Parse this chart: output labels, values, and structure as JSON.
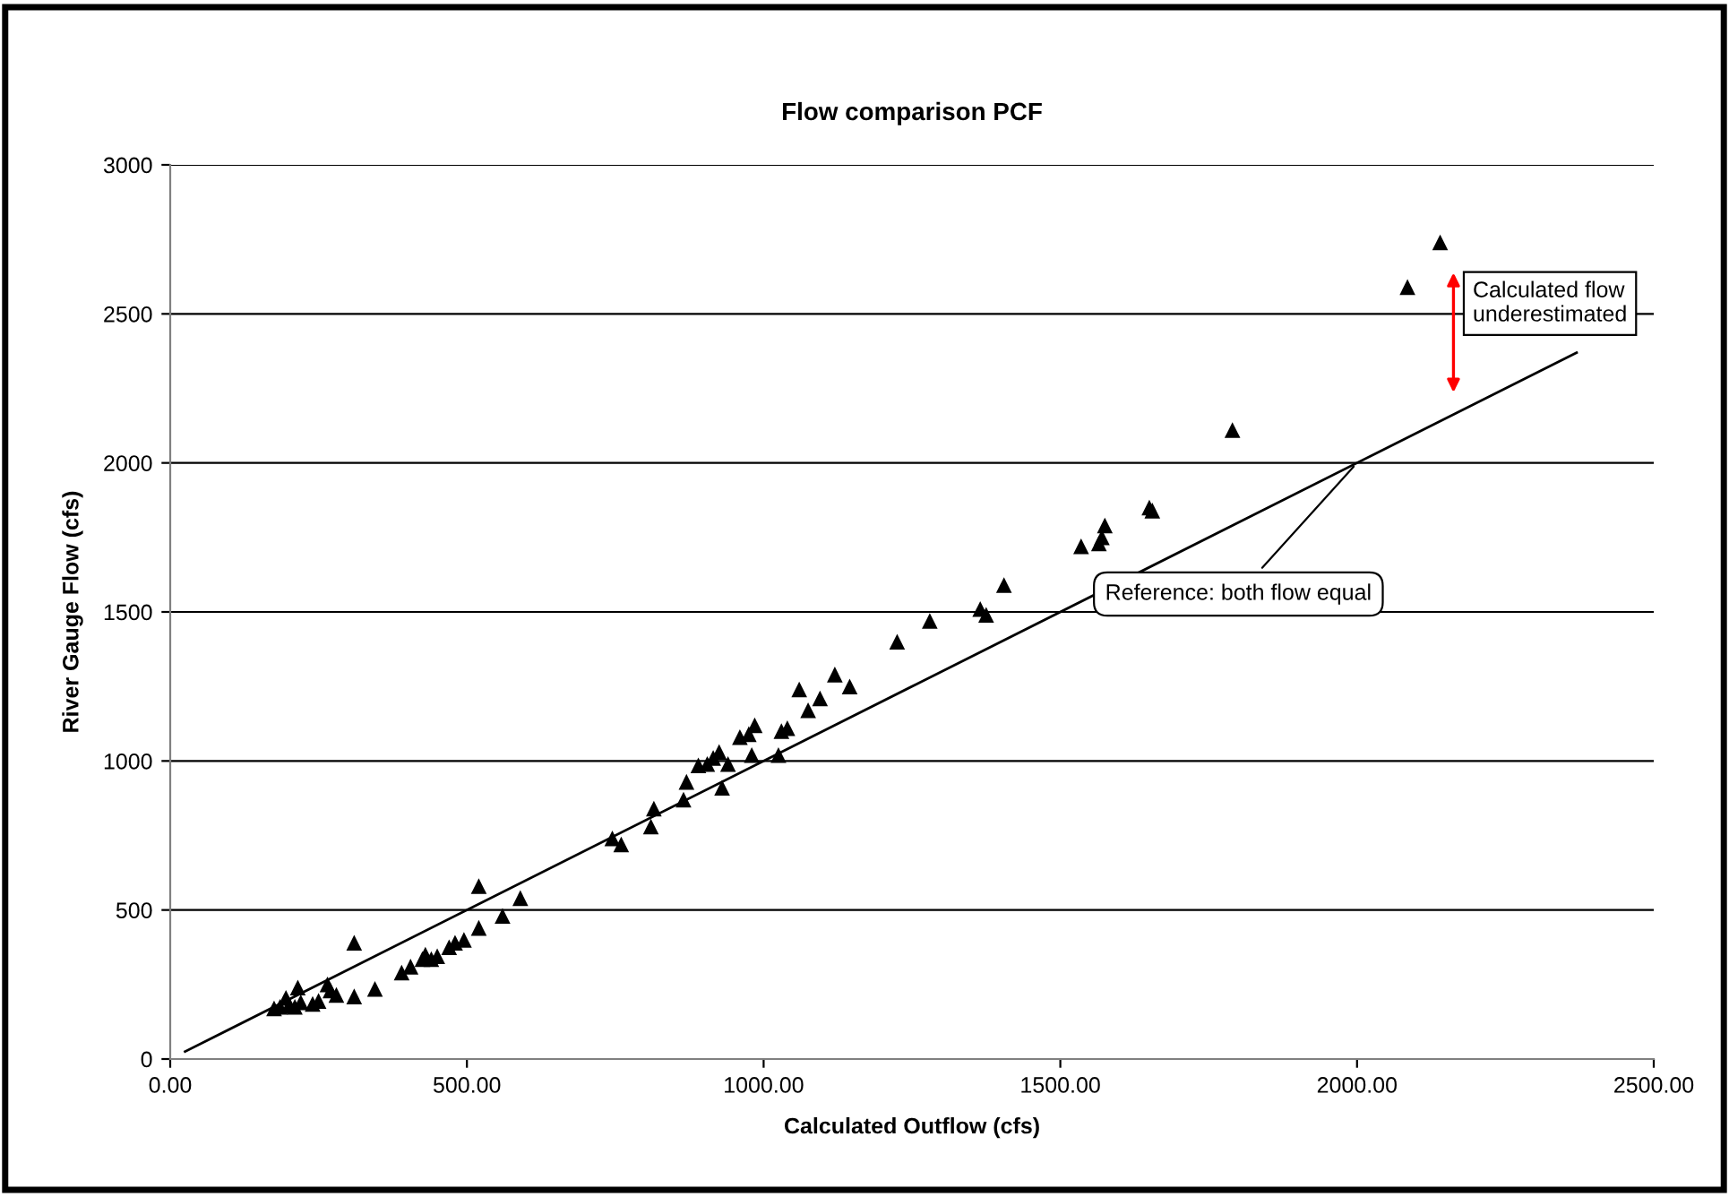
{
  "chart_data": {
    "type": "scatter",
    "title": "Flow comparison PCF",
    "xlabel": "Calculated Outflow (cfs)",
    "ylabel": "River Gauge Flow (cfs)",
    "xlim": [
      0,
      2500
    ],
    "ylim": [
      0,
      3000
    ],
    "xticks": [
      {
        "value": 0,
        "label": "0.00"
      },
      {
        "value": 500,
        "label": "500.00"
      },
      {
        "value": 1000,
        "label": "1000.00"
      },
      {
        "value": 1500,
        "label": "1500.00"
      },
      {
        "value": 2000,
        "label": "2000.00"
      },
      {
        "value": 2500,
        "label": "2500.00"
      }
    ],
    "yticks": [
      0,
      500,
      1000,
      1500,
      2000,
      2500,
      3000
    ],
    "grid": "y",
    "marker": "triangle",
    "series": [
      {
        "color": "#000000",
        "x": [
          175,
          185,
          195,
          200,
          210,
          215,
          220,
          240,
          250,
          265,
          270,
          280,
          310,
          310,
          345,
          390,
          405,
          425,
          430,
          440,
          450,
          470,
          480,
          495,
          520,
          520,
          560,
          590,
          745,
          760,
          810,
          815,
          865,
          870,
          890,
          905,
          915,
          925,
          930,
          940,
          960,
          975,
          985,
          980,
          1025,
          1030,
          1040,
          1060,
          1075,
          1095,
          1120,
          1145,
          1225,
          1280,
          1365,
          1375,
          1405,
          1535,
          1565,
          1570,
          1575,
          1650,
          1655,
          1790,
          2085,
          2140
        ],
        "values": [
          170,
          175,
          205,
          180,
          175,
          240,
          190,
          185,
          195,
          250,
          230,
          215,
          210,
          390,
          235,
          290,
          310,
          335,
          350,
          335,
          345,
          375,
          390,
          400,
          440,
          580,
          480,
          540,
          740,
          720,
          780,
          840,
          870,
          930,
          985,
          990,
          1010,
          1030,
          910,
          990,
          1080,
          1090,
          1120,
          1020,
          1020,
          1100,
          1110,
          1240,
          1170,
          1210,
          1290,
          1250,
          1400,
          1470,
          1510,
          1490,
          1590,
          1720,
          1730,
          1750,
          1790,
          1850,
          1840,
          2110,
          2590,
          2740
        ]
      },
      {
        "type": "line",
        "color": "#000000",
        "marker": "none",
        "x": [
          25,
          2370
        ],
        "values": [
          25,
          2370
        ]
      }
    ],
    "annotations": [
      {
        "text": "Reference: both flow equal",
        "x": 2000,
        "y": 2000
      },
      "Calculated flow underestimated"
    ]
  }
}
